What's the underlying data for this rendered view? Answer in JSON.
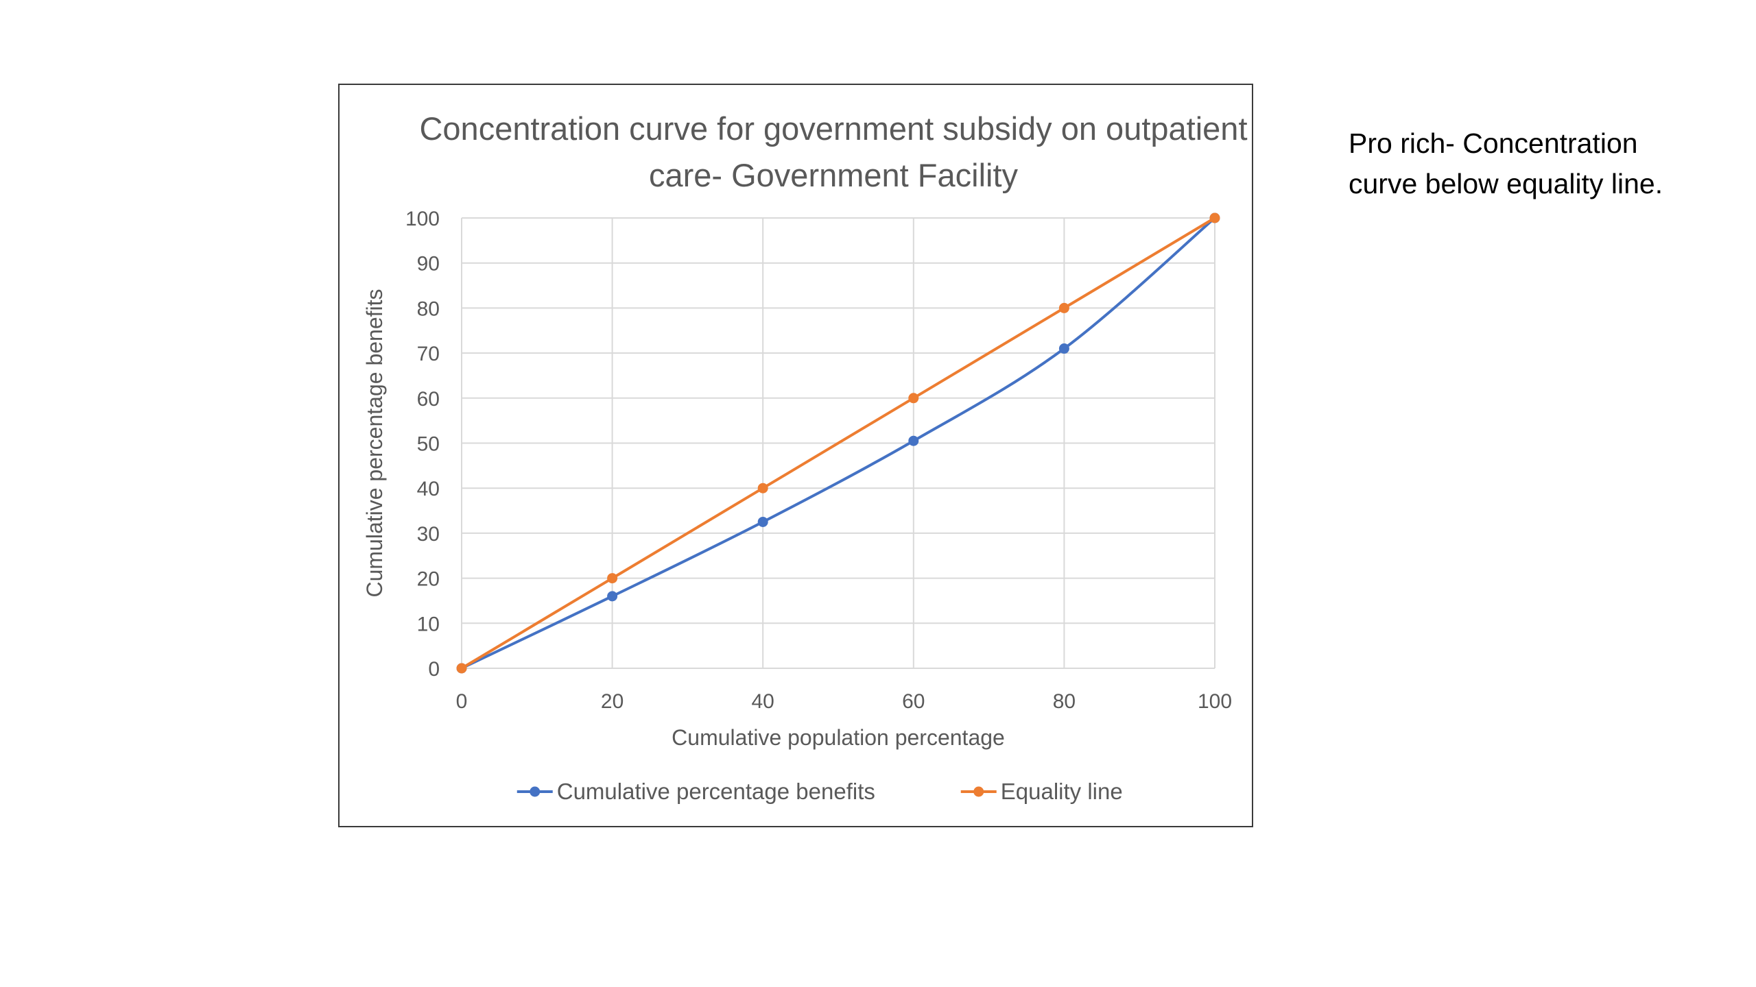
{
  "note": {
    "text": "Pro rich- Concentration curve below equality line."
  },
  "chart_data": {
    "type": "line",
    "title": "Concentration curve for government subsidy on outpatient care- Government Facility",
    "xlabel": "Cumulative population percentage",
    "ylabel": "Cumulative percentage benefits",
    "x": [
      0,
      20,
      40,
      60,
      80,
      100
    ],
    "xlim": [
      0,
      100
    ],
    "ylim": [
      0,
      100
    ],
    "xticks": [
      "0",
      "20",
      "40",
      "60",
      "80",
      "100"
    ],
    "yticks": [
      "0",
      "10",
      "20",
      "30",
      "40",
      "50",
      "60",
      "70",
      "80",
      "90",
      "100"
    ],
    "grid": true,
    "legend_position": "bottom",
    "series": [
      {
        "name": "Cumulative percentage benefits",
        "color": "#4472C4",
        "values": [
          0,
          16,
          32.5,
          50.5,
          71,
          100
        ]
      },
      {
        "name": "Equality line",
        "color": "#ED7D31",
        "values": [
          0,
          20,
          40,
          60,
          80,
          100
        ]
      }
    ]
  }
}
